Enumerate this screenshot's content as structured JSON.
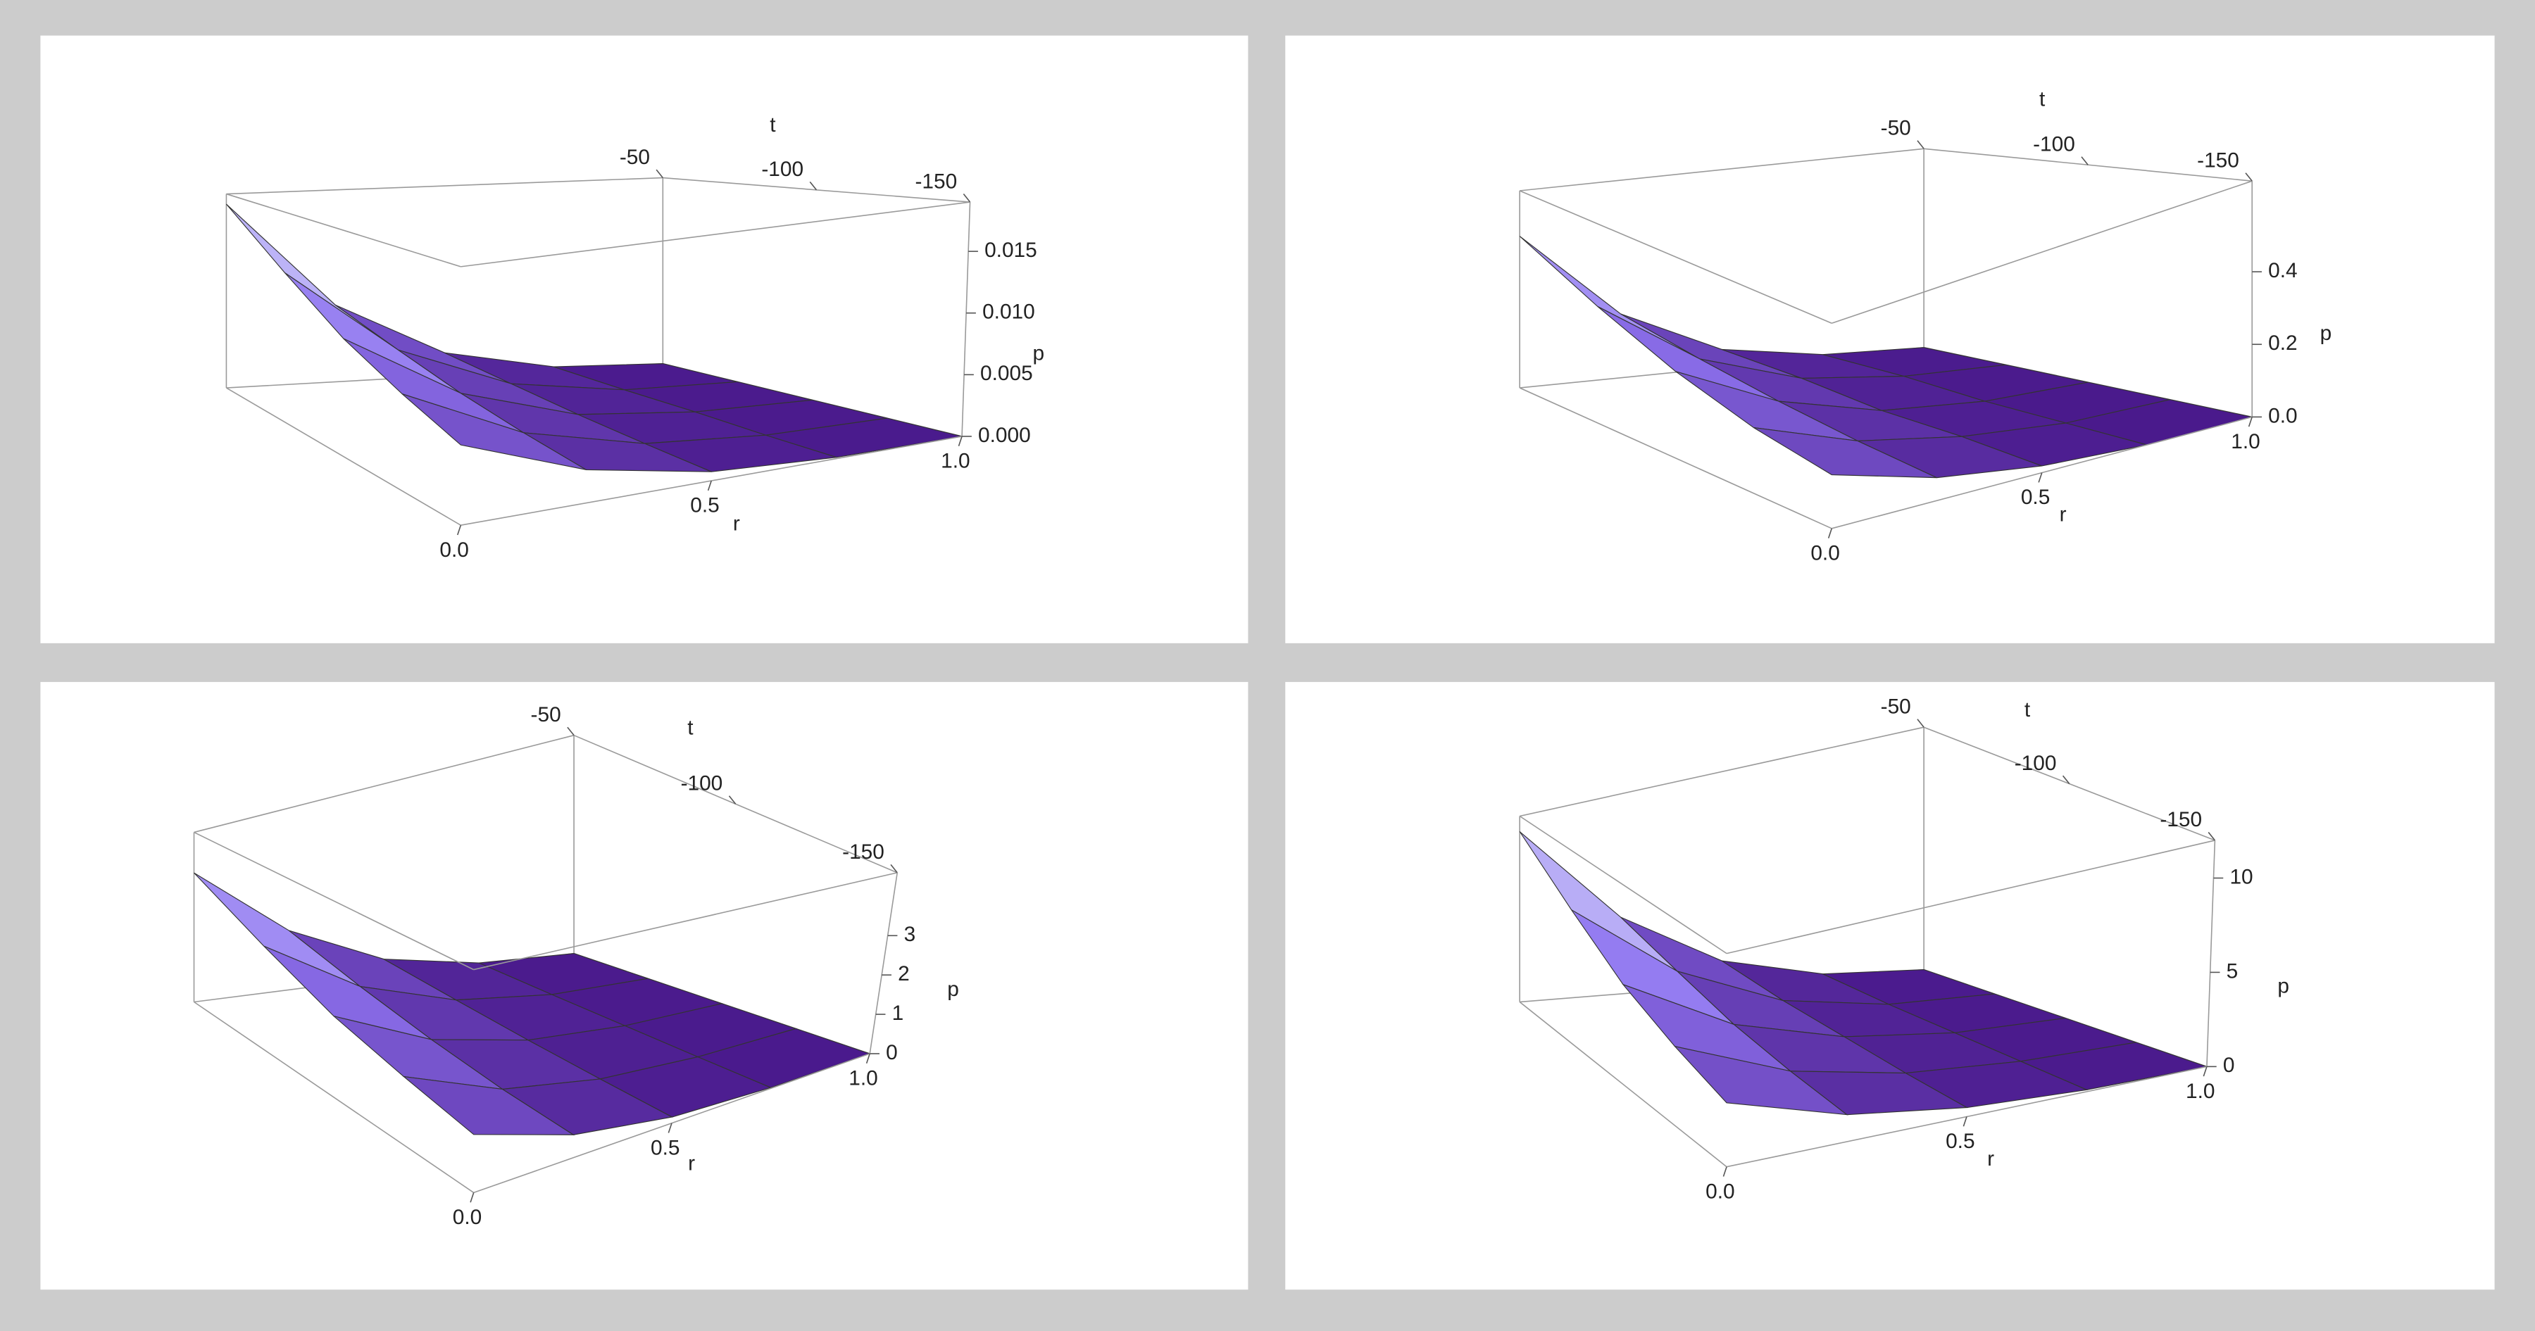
{
  "chart_data": [
    {
      "type": "surface",
      "x_label": "r",
      "y_label": "t",
      "z_label": "p",
      "x": [
        0,
        0.25,
        0.5,
        0.75,
        1
      ],
      "y": [
        -50,
        -75,
        -100,
        -125,
        -150
      ],
      "z": [
        [
          0.018,
          0.0135,
          0.0099,
          0.0076,
          0.0059
        ],
        [
          0.0076,
          0.0057,
          0.0042,
          0.0032,
          0.0025
        ],
        [
          0.0023,
          0.0017,
          0.0012,
          0.0009,
          0.0007
        ],
        [
          0.0003,
          0.0002,
          0.0002,
          0.0001,
          0.0001
        ],
        [
          0,
          0,
          0,
          0,
          0
        ]
      ],
      "xlim": [
        0,
        1
      ],
      "ylim": [
        -150,
        -50
      ],
      "zlim": [
        0,
        0.019
      ],
      "xticks": [
        {
          "value": 0,
          "label": "0.0"
        },
        0.5,
        {
          "value": 1,
          "label": "1.0"
        }
      ],
      "yticks": [
        -50,
        -100,
        -150
      ],
      "zticks": [
        {
          "value": 0,
          "label": "0.000"
        },
        0.005,
        {
          "value": 0.01,
          "label": "0.010"
        },
        0.015
      ],
      "colormap": [
        "#4a1a8c",
        "#8f74f0",
        "#eefaff"
      ]
    },
    {
      "type": "surface",
      "x_label": "r",
      "y_label": "t",
      "z_label": "p",
      "x": [
        0,
        0.25,
        0.5,
        0.75,
        1
      ],
      "y": [
        -50,
        -75,
        -100,
        -125,
        -150
      ],
      "z": [
        [
          0.5,
          0.38,
          0.28,
          0.21,
          0.17
        ],
        [
          0.21,
          0.16,
          0.12,
          0.09,
          0.07
        ],
        [
          0.06,
          0.05,
          0.03,
          0.03,
          0.02
        ],
        [
          0.01,
          0.01,
          0,
          0,
          0
        ],
        [
          0,
          0,
          0,
          0,
          0
        ]
      ],
      "xlim": [
        0,
        1
      ],
      "ylim": [
        -150,
        -50
      ],
      "zlim": [
        0,
        0.65
      ],
      "xticks": [
        {
          "value": 0,
          "label": "0.0"
        },
        0.5,
        {
          "value": 1,
          "label": "1.0"
        }
      ],
      "yticks": [
        -50,
        -100,
        -150
      ],
      "zticks": [
        {
          "value": 0,
          "label": "0.0"
        },
        0.2,
        0.4
      ],
      "colormap": [
        "#4a1a8c",
        "#8f74f0",
        "#eefaff"
      ]
    },
    {
      "type": "surface",
      "x_label": "r",
      "y_label": "t",
      "z_label": "p",
      "x": [
        0,
        0.25,
        0.5,
        0.75,
        1
      ],
      "y": [
        -50,
        -75,
        -100,
        -125,
        -150
      ],
      "z": [
        [
          3.5,
          2.6,
          1.9,
          1.5,
          1.2
        ],
        [
          1.5,
          1.1,
          0.8,
          0.6,
          0.5
        ],
        [
          0.44,
          0.33,
          0.24,
          0.18,
          0.14
        ],
        [
          0.06,
          0.04,
          0.03,
          0.02,
          0.02
        ],
        [
          0,
          0,
          0,
          0,
          0
        ]
      ],
      "xlim": [
        0,
        1
      ],
      "ylim": [
        -150,
        -50
      ],
      "zlim": [
        0,
        4.6
      ],
      "xticks": [
        {
          "value": 0,
          "label": "0.0"
        },
        0.5,
        {
          "value": 1,
          "label": "1.0"
        }
      ],
      "yticks": [
        -50,
        -100,
        -150
      ],
      "zticks": [
        0,
        1,
        2,
        3
      ],
      "colormap": [
        "#4a1a8c",
        "#8f74f0",
        "#eefaff"
      ]
    },
    {
      "type": "surface",
      "x_label": "r",
      "y_label": "t",
      "z_label": "p",
      "x": [
        0,
        0.25,
        0.5,
        0.75,
        1
      ],
      "y": [
        -50,
        -75,
        -100,
        -125,
        -150
      ],
      "z": [
        [
          11,
          8.3,
          6,
          4.6,
          3.6
        ],
        [
          4.6,
          3.5,
          2.5,
          1.9,
          1.5
        ],
        [
          1.4,
          1,
          0.8,
          0.6,
          0.5
        ],
        [
          0.2,
          0.1,
          0.1,
          0.1,
          0.1
        ],
        [
          0,
          0,
          0,
          0,
          0
        ]
      ],
      "xlim": [
        0,
        1
      ],
      "ylim": [
        -150,
        -50
      ],
      "zlim": [
        0,
        12
      ],
      "xticks": [
        {
          "value": 0,
          "label": "0.0"
        },
        0.5,
        {
          "value": 1,
          "label": "1.0"
        }
      ],
      "yticks": [
        -50,
        -100,
        -150
      ],
      "zticks": [
        0,
        5,
        10
      ],
      "colormap": [
        "#4a1a8c",
        "#8f74f0",
        "#eefaff"
      ]
    }
  ]
}
